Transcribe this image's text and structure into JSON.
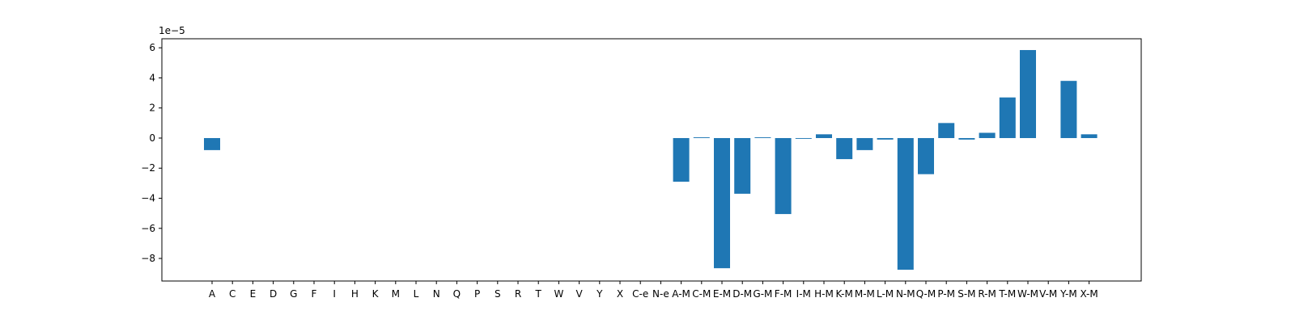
{
  "chart_data": {
    "type": "bar",
    "title": "",
    "xlabel": "",
    "ylabel": "",
    "y_offset_label": "1e−5",
    "ylim": [
      -9.5,
      6.6
    ],
    "yticks": [
      -8,
      -6,
      -4,
      -2,
      0,
      2,
      4,
      6
    ],
    "ytick_labels": [
      "−8",
      "−6",
      "−4",
      "−2",
      "0",
      "2",
      "4",
      "6"
    ],
    "grid": false,
    "bar_color": "#1f77b4",
    "categories": [
      "A",
      "C",
      "E",
      "D",
      "G",
      "F",
      "I",
      "H",
      "K",
      "M",
      "L",
      "N",
      "Q",
      "P",
      "S",
      "R",
      "T",
      "W",
      "V",
      "Y",
      "X",
      "C-e",
      "N-e",
      "A-M",
      "C-M",
      "E-M",
      "D-M",
      "G-M",
      "F-M",
      "I-M",
      "H-M",
      "K-M",
      "M-M",
      "L-M",
      "N-M",
      "Q-M",
      "P-M",
      "S-M",
      "R-M",
      "T-M",
      "W-M",
      "V-M",
      "Y-M",
      "X-M"
    ],
    "values": [
      -0.8,
      0,
      0,
      0,
      0,
      0,
      0,
      0,
      0,
      0,
      0,
      0,
      0,
      0,
      0,
      0,
      0,
      0,
      0,
      0,
      0,
      0,
      0,
      -2.9,
      0.05,
      -8.65,
      -3.7,
      0.05,
      -5.05,
      -0.05,
      0.25,
      -1.4,
      -0.8,
      -0.1,
      -8.75,
      -2.4,
      1.0,
      -0.1,
      0.35,
      2.7,
      5.85,
      0,
      3.8,
      0.25
    ]
  }
}
